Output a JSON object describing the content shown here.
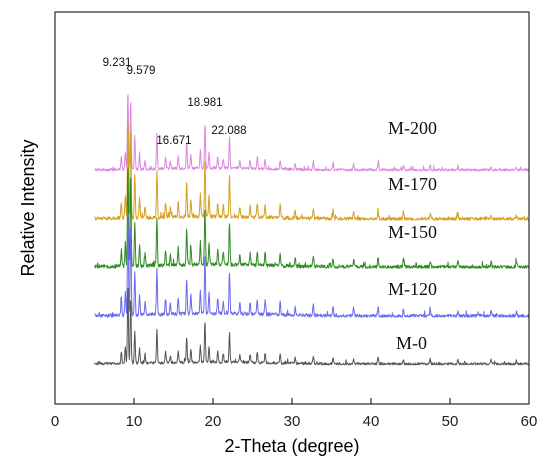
{
  "chart_data": {
    "type": "line",
    "title": "",
    "xlabel": "2-Theta (degree)",
    "ylabel": "Relative Intensity",
    "xlim": [
      0,
      60
    ],
    "x_ticks": [
      0,
      10,
      20,
      30,
      40,
      50,
      60
    ],
    "y_ticks_shown": false,
    "grid": false,
    "legend": "inline labels above each trace",
    "x_range_measured": [
      5,
      60
    ],
    "peak_annotations": [
      {
        "x": 9.231,
        "label": "9.231"
      },
      {
        "x": 9.579,
        "label": "9.579"
      },
      {
        "x": 16.671,
        "label": "16.671"
      },
      {
        "x": 18.981,
        "label": "18.981"
      },
      {
        "x": 22.088,
        "label": "22.088"
      }
    ],
    "peaks": [
      {
        "x": 8.4,
        "h": 0.16
      },
      {
        "x": 8.9,
        "h": 0.22
      },
      {
        "x": 9.231,
        "h": 1.0
      },
      {
        "x": 9.579,
        "h": 0.88
      },
      {
        "x": 10.1,
        "h": 0.42
      },
      {
        "x": 10.7,
        "h": 0.2
      },
      {
        "x": 11.4,
        "h": 0.12
      },
      {
        "x": 12.9,
        "h": 0.44
      },
      {
        "x": 14.0,
        "h": 0.15
      },
      {
        "x": 14.6,
        "h": 0.1
      },
      {
        "x": 15.6,
        "h": 0.16
      },
      {
        "x": 16.671,
        "h": 0.34
      },
      {
        "x": 17.2,
        "h": 0.18
      },
      {
        "x": 18.4,
        "h": 0.22
      },
      {
        "x": 18.981,
        "h": 0.55
      },
      {
        "x": 19.5,
        "h": 0.2
      },
      {
        "x": 20.6,
        "h": 0.14
      },
      {
        "x": 21.3,
        "h": 0.12
      },
      {
        "x": 22.088,
        "h": 0.4
      },
      {
        "x": 23.4,
        "h": 0.1
      },
      {
        "x": 24.7,
        "h": 0.11
      },
      {
        "x": 25.6,
        "h": 0.14
      },
      {
        "x": 26.6,
        "h": 0.13
      },
      {
        "x": 28.5,
        "h": 0.12
      },
      {
        "x": 30.4,
        "h": 0.08
      },
      {
        "x": 32.7,
        "h": 0.1
      },
      {
        "x": 35.2,
        "h": 0.08
      },
      {
        "x": 37.8,
        "h": 0.07
      },
      {
        "x": 40.9,
        "h": 0.09
      },
      {
        "x": 44.1,
        "h": 0.07
      },
      {
        "x": 47.5,
        "h": 0.06
      },
      {
        "x": 51.0,
        "h": 0.05
      },
      {
        "x": 55.2,
        "h": 0.05
      },
      {
        "x": 58.4,
        "h": 0.04
      }
    ],
    "series": [
      {
        "name": "M-200",
        "color": "#dd88dd",
        "scale": 0.75
      },
      {
        "name": "M-170",
        "color": "#d4a020",
        "scale": 0.98
      },
      {
        "name": "M-150",
        "color": "#2e8b22",
        "scale": 1.0
      },
      {
        "name": "M-120",
        "color": "#6a6aee",
        "scale": 1.0
      },
      {
        "name": "M-0",
        "color": "#555555",
        "scale": 0.72
      }
    ]
  }
}
